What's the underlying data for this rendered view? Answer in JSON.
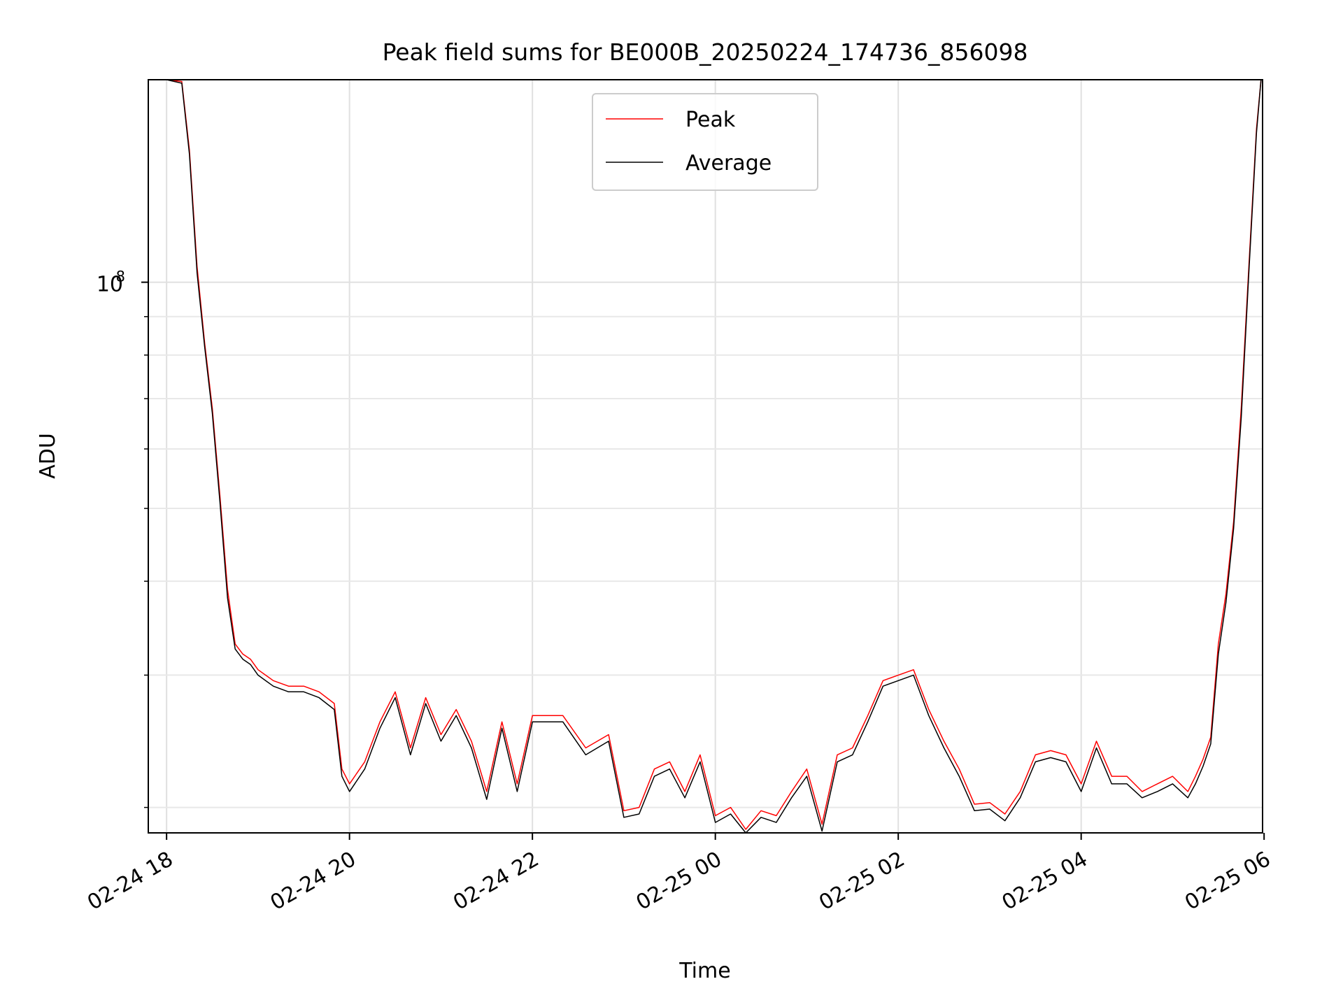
{
  "chart_data": {
    "type": "line",
    "title": "Peak field sums for BE000B_20250224_174736_856098",
    "xlabel": "Time",
    "ylabel": "ADU",
    "yscale": "log",
    "grid": true,
    "legend_placement": "upper center",
    "xlim": [
      "2025-02-24 17:48",
      "2025-02-25 05:59"
    ],
    "ylim": [
      18500000,
      186000000
    ],
    "x_ticks": [
      {
        "value": "2025-02-24 18:00",
        "label": "02-24 18"
      },
      {
        "value": "2025-02-24 20:00",
        "label": "02-24 20"
      },
      {
        "value": "2025-02-24 22:00",
        "label": "02-24 22"
      },
      {
        "value": "2025-02-25 00:00",
        "label": "02-25 00"
      },
      {
        "value": "2025-02-25 02:00",
        "label": "02-25 02"
      },
      {
        "value": "2025-02-25 04:00",
        "label": "02-25 04"
      },
      {
        "value": "2025-02-25 06:00",
        "label": "02-25 06"
      }
    ],
    "y_major_ticks": [
      {
        "value": 100000000,
        "base": "10",
        "exponent": "8"
      }
    ],
    "y_minor_ticks": [
      20000000,
      30000000,
      40000000,
      50000000,
      60000000,
      70000000,
      80000000,
      90000000,
      200000000
    ],
    "x": [
      "2025-02-24 17:48",
      "2025-02-24 18:00",
      "2025-02-24 18:10",
      "2025-02-24 18:15",
      "2025-02-24 18:20",
      "2025-02-24 18:25",
      "2025-02-24 18:30",
      "2025-02-24 18:35",
      "2025-02-24 18:40",
      "2025-02-24 18:45",
      "2025-02-24 18:50",
      "2025-02-24 18:55",
      "2025-02-24 19:00",
      "2025-02-24 19:10",
      "2025-02-24 19:20",
      "2025-02-24 19:30",
      "2025-02-24 19:40",
      "2025-02-24 19:50",
      "2025-02-24 19:55",
      "2025-02-24 20:00",
      "2025-02-24 20:10",
      "2025-02-24 20:20",
      "2025-02-24 20:30",
      "2025-02-24 20:40",
      "2025-02-24 20:50",
      "2025-02-24 21:00",
      "2025-02-24 21:10",
      "2025-02-24 21:20",
      "2025-02-24 21:30",
      "2025-02-24 21:40",
      "2025-02-24 21:50",
      "2025-02-24 22:00",
      "2025-02-24 22:20",
      "2025-02-24 22:35",
      "2025-02-24 22:50",
      "2025-02-24 23:00",
      "2025-02-24 23:10",
      "2025-02-24 23:20",
      "2025-02-24 23:30",
      "2025-02-24 23:40",
      "2025-02-24 23:50",
      "2025-02-25 00:00",
      "2025-02-25 00:10",
      "2025-02-25 00:20",
      "2025-02-25 00:30",
      "2025-02-25 00:40",
      "2025-02-25 00:50",
      "2025-02-25 01:00",
      "2025-02-25 01:10",
      "2025-02-25 01:20",
      "2025-02-25 01:30",
      "2025-02-25 01:40",
      "2025-02-25 01:50",
      "2025-02-25 02:00",
      "2025-02-25 02:10",
      "2025-02-25 02:20",
      "2025-02-25 02:30",
      "2025-02-25 02:40",
      "2025-02-25 02:50",
      "2025-02-25 03:00",
      "2025-02-25 03:10",
      "2025-02-25 03:20",
      "2025-02-25 03:30",
      "2025-02-25 03:40",
      "2025-02-25 03:50",
      "2025-02-25 04:00",
      "2025-02-25 04:10",
      "2025-02-25 04:20",
      "2025-02-25 04:30",
      "2025-02-25 04:40",
      "2025-02-25 04:50",
      "2025-02-25 05:00",
      "2025-02-25 05:10",
      "2025-02-25 05:15",
      "2025-02-25 05:20",
      "2025-02-25 05:25",
      "2025-02-25 05:30",
      "2025-02-25 05:35",
      "2025-02-25 05:40",
      "2025-02-25 05:45",
      "2025-02-25 05:50",
      "2025-02-25 05:55",
      "2025-02-25 05:58"
    ],
    "series": [
      {
        "name": "Peak",
        "color": "#ff0000",
        "values": [
          186000000,
          186000000,
          185000000,
          150000000,
          105000000,
          83000000,
          68000000,
          52000000,
          39000000,
          33000000,
          32000000,
          31500000,
          30500000,
          29500000,
          29000000,
          29000000,
          28500000,
          27500000,
          22500000,
          21500000,
          23000000,
          26000000,
          28500000,
          24000000,
          28000000,
          25000000,
          27000000,
          24500000,
          21000000,
          26000000,
          21500000,
          26500000,
          26500000,
          24000000,
          25000000,
          19800000,
          20000000,
          22500000,
          23000000,
          21000000,
          23500000,
          19500000,
          20000000,
          18700000,
          19800000,
          19500000,
          21000000,
          22500000,
          19000000,
          23500000,
          24000000,
          26500000,
          29500000,
          30000000,
          30500000,
          27000000,
          24500000,
          22500000,
          20200000,
          20300000,
          19600000,
          21000000,
          23500000,
          23800000,
          23500000,
          21500000,
          24500000,
          22000000,
          22000000,
          21000000,
          21500000,
          22000000,
          21000000,
          22000000,
          23200000,
          24800000,
          33000000,
          38500000,
          48000000,
          68000000,
          105000000,
          160000000,
          186000000
        ]
      },
      {
        "name": "Average",
        "color": "#000000",
        "values": [
          186000000,
          186000000,
          184000000,
          148000000,
          103000000,
          82000000,
          67000000,
          51000000,
          38000000,
          32500000,
          31500000,
          31000000,
          30000000,
          29000000,
          28500000,
          28500000,
          28000000,
          27000000,
          22000000,
          21000000,
          22500000,
          25500000,
          28000000,
          23500000,
          27500000,
          24500000,
          26500000,
          24000000,
          20500000,
          25500000,
          21000000,
          26000000,
          26000000,
          23500000,
          24500000,
          19400000,
          19600000,
          22000000,
          22500000,
          20600000,
          23000000,
          19100000,
          19600000,
          18400000,
          19400000,
          19100000,
          20600000,
          22000000,
          18600000,
          23000000,
          23500000,
          26000000,
          29000000,
          29500000,
          30000000,
          26500000,
          24000000,
          22000000,
          19800000,
          19900000,
          19200000,
          20600000,
          23000000,
          23300000,
          23000000,
          21000000,
          24000000,
          21500000,
          21500000,
          20600000,
          21000000,
          21500000,
          20600000,
          21500000,
          22700000,
          24300000,
          32000000,
          37500000,
          47000000,
          66000000,
          103000000,
          158000000,
          186000000
        ]
      }
    ]
  }
}
